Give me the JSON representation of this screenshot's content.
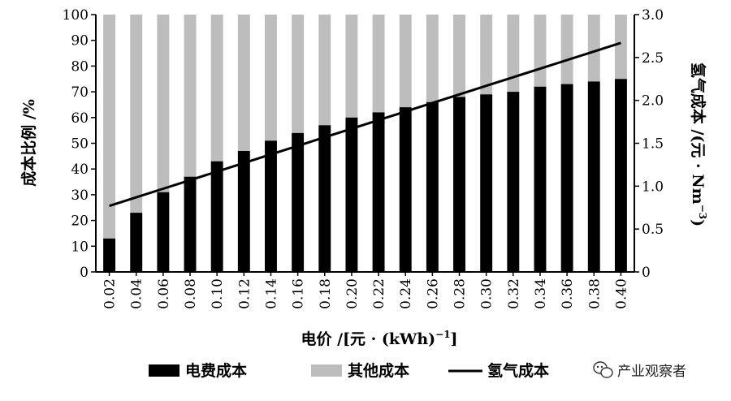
{
  "chart_data": {
    "type": "bar",
    "stacked": true,
    "categories": [
      "0.02",
      "0.04",
      "0.06",
      "0.08",
      "0.10",
      "0.12",
      "0.14",
      "0.16",
      "0.18",
      "0.20",
      "0.22",
      "0.24",
      "0.26",
      "0.28",
      "0.30",
      "0.32",
      "0.34",
      "0.36",
      "0.38",
      "0.40"
    ],
    "series": [
      {
        "name": "电费成本",
        "color": "#000000",
        "axis": "left",
        "values": [
          13,
          23,
          31,
          37,
          43,
          47,
          51,
          54,
          57,
          60,
          62,
          64,
          66,
          68,
          69,
          70,
          72,
          73,
          74,
          75
        ]
      },
      {
        "name": "其他成本",
        "color": "#bdbdbd",
        "axis": "left",
        "values": [
          87,
          77,
          69,
          63,
          57,
          53,
          49,
          46,
          43,
          40,
          38,
          36,
          34,
          32,
          31,
          30,
          28,
          27,
          26,
          25
        ]
      },
      {
        "name": "氢气成本",
        "type": "line",
        "color": "#000000",
        "axis": "right",
        "values": [
          0.77,
          0.87,
          0.97,
          1.07,
          1.17,
          1.27,
          1.37,
          1.47,
          1.57,
          1.67,
          1.77,
          1.87,
          1.97,
          2.07,
          2.17,
          2.27,
          2.37,
          2.47,
          2.57,
          2.67
        ]
      }
    ],
    "xlabel_main": "电价 /[元 · (kWh)",
    "xlabel_sup": "−1",
    "xlabel_end": "]",
    "ylabel_left": "成本比例 /%",
    "ylabel_right_main": "氢气成本 /(元 · Nm",
    "ylabel_right_sup": "−3",
    "ylabel_right_end": ")",
    "ylim_left": [
      0,
      100
    ],
    "ylim_right": [
      0,
      3.0
    ],
    "yticks_left": [
      "0",
      "10",
      "20",
      "30",
      "40",
      "50",
      "60",
      "70",
      "80",
      "90",
      "100"
    ],
    "yticks_right": [
      "0",
      "0.5",
      "1.0",
      "1.5",
      "2.0",
      "2.5",
      "3.0"
    ],
    "legend_position": "bottom",
    "grid": false
  },
  "watermark": {
    "text": "产业观察者",
    "icon": "wechat-icon"
  }
}
